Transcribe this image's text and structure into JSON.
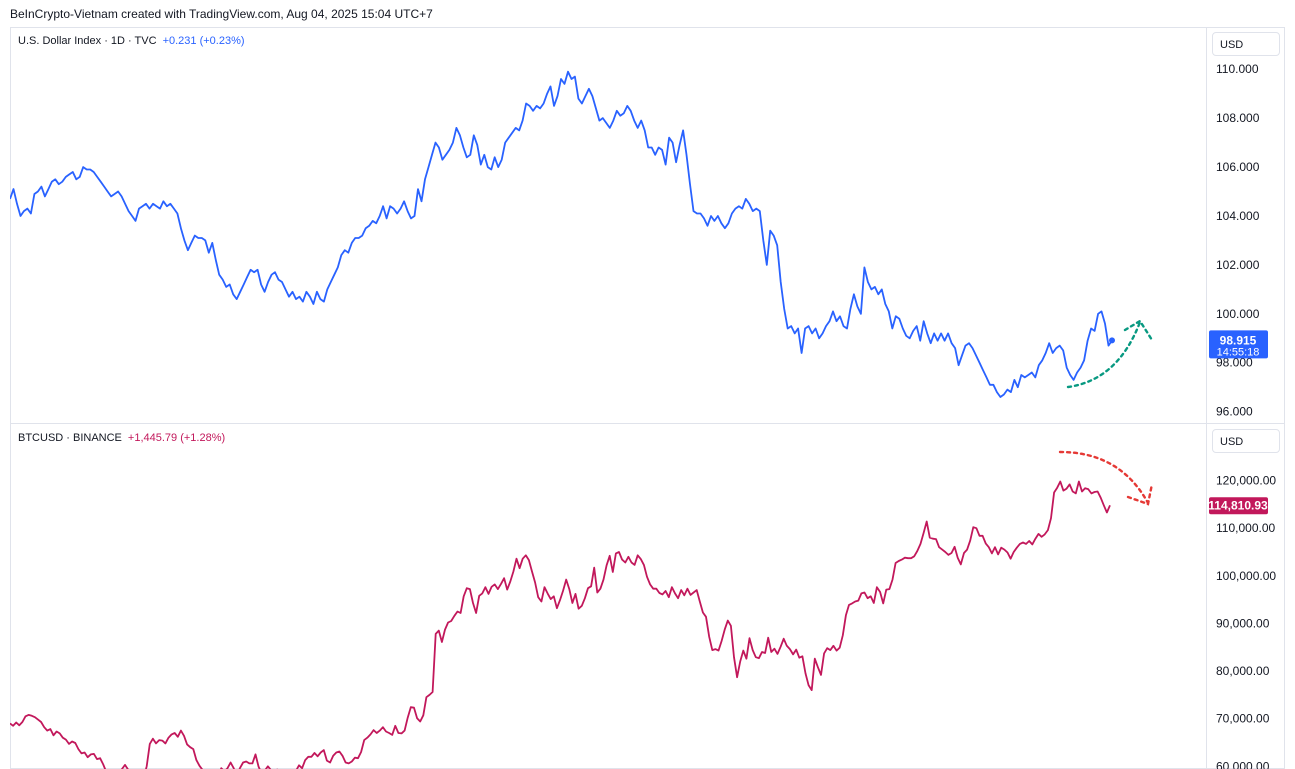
{
  "header": {
    "text": "BeInCrypto-Vietnam created with TradingView.com, Aug 04, 2025 15:04 UTC+7"
  },
  "panes": {
    "dxy": {
      "legend": {
        "symbol": "U.S. Dollar Index · 1D · TVC",
        "change": "+0.231 (+0.23%)"
      },
      "currency": "USD",
      "last_price": "98.915",
      "countdown": "14:55:18",
      "line_color": "#2962ff",
      "label_color": "#2962ff",
      "annotation_color": "#089981"
    },
    "btc": {
      "legend": {
        "symbol": "BTCUSD · BINANCE",
        "change": "+1,445.79 (+1.28%)"
      },
      "currency": "USD",
      "last_price": "114,810.93",
      "line_color": "#c2185b",
      "label_color": "#c2185b",
      "annotation_color": "#e53935"
    }
  },
  "chart_data": [
    {
      "type": "line",
      "name": "dxy",
      "ylim": [
        95.7,
        110.5
      ],
      "yticks": [
        {
          "v": 96,
          "label": "96.000"
        },
        {
          "v": 98,
          "label": "98.000"
        },
        {
          "v": 100,
          "label": "100.000"
        },
        {
          "v": 102,
          "label": "102.000"
        },
        {
          "v": 104,
          "label": "104.000"
        },
        {
          "v": 106,
          "label": "106.000"
        },
        {
          "v": 108,
          "label": "108.000"
        },
        {
          "v": 110,
          "label": "110.000"
        }
      ],
      "values": [
        104.7,
        105.1,
        104.5,
        104.0,
        104.2,
        104.3,
        104.1,
        104.9,
        105.0,
        105.2,
        104.8,
        105.1,
        105.4,
        105.5,
        105.3,
        105.4,
        105.6,
        105.7,
        105.8,
        105.5,
        105.6,
        106.0,
        105.9,
        105.9,
        105.8,
        105.6,
        105.4,
        105.2,
        105.0,
        104.8,
        104.9,
        105.0,
        104.8,
        104.5,
        104.2,
        104.0,
        103.8,
        104.3,
        104.4,
        104.5,
        104.3,
        104.5,
        104.4,
        104.3,
        104.6,
        104.4,
        104.5,
        104.3,
        104.1,
        103.5,
        103.0,
        102.6,
        102.9,
        103.2,
        103.1,
        103.1,
        103.0,
        102.5,
        102.9,
        102.2,
        101.6,
        101.4,
        101.1,
        101.2,
        100.8,
        100.6,
        100.9,
        101.2,
        101.5,
        101.8,
        101.7,
        101.8,
        101.2,
        100.9,
        101.3,
        101.6,
        101.7,
        101.4,
        101.3,
        101.0,
        100.7,
        100.9,
        100.6,
        100.7,
        100.5,
        100.9,
        100.7,
        100.4,
        100.9,
        100.6,
        100.5,
        101.0,
        101.3,
        101.6,
        101.9,
        102.4,
        102.6,
        102.5,
        102.9,
        103.1,
        103.1,
        103.2,
        103.5,
        103.6,
        103.8,
        103.7,
        104.0,
        104.4,
        103.9,
        104.4,
        104.3,
        104.1,
        104.3,
        104.6,
        104.2,
        103.9,
        104.0,
        105.1,
        104.6,
        105.5,
        106.0,
        106.5,
        107.0,
        106.8,
        106.3,
        106.5,
        106.7,
        107.0,
        107.6,
        107.3,
        106.8,
        106.4,
        106.5,
        107.3,
        106.9,
        106.1,
        106.5,
        106.0,
        105.9,
        106.4,
        106.0,
        106.3,
        107.0,
        107.2,
        107.4,
        107.6,
        107.5,
        107.9,
        108.6,
        108.5,
        108.3,
        108.5,
        108.4,
        108.6,
        109.0,
        109.3,
        108.5,
        108.9,
        109.6,
        109.4,
        109.9,
        109.6,
        109.7,
        108.8,
        108.6,
        108.9,
        109.2,
        108.9,
        108.4,
        107.9,
        108.0,
        107.8,
        107.6,
        107.9,
        108.3,
        108.1,
        108.2,
        108.5,
        108.3,
        107.9,
        107.6,
        107.9,
        107.5,
        106.8,
        106.8,
        106.5,
        106.8,
        106.7,
        106.1,
        107.2,
        107.0,
        106.2,
        106.9,
        107.5,
        106.5,
        105.3,
        104.2,
        104.1,
        104.1,
        103.9,
        103.6,
        104.0,
        103.8,
        104.0,
        103.7,
        103.5,
        103.7,
        104.1,
        104.3,
        104.4,
        104.3,
        104.7,
        104.5,
        104.2,
        104.3,
        104.2,
        103.0,
        102.0,
        103.4,
        103.2,
        102.8,
        101.3,
        100.2,
        99.4,
        99.5,
        99.2,
        99.4,
        98.4,
        99.4,
        99.5,
        99.2,
        99.4,
        99.0,
        99.2,
        99.5,
        99.7,
        100.1,
        99.7,
        99.9,
        99.5,
        99.4,
        100.2,
        100.8,
        100.3,
        100.0,
        101.9,
        101.3,
        101.0,
        101.1,
        100.8,
        101.0,
        100.4,
        100.1,
        99.4,
        99.9,
        99.8,
        99.4,
        99.1,
        99.0,
        99.3,
        99.5,
        98.9,
        99.7,
        99.2,
        98.8,
        99.2,
        98.9,
        99.2,
        98.9,
        99.2,
        98.8,
        98.6,
        97.9,
        98.3,
        98.7,
        98.8,
        98.6,
        98.3,
        98.0,
        97.7,
        97.4,
        97.1,
        97.1,
        96.8,
        96.6,
        96.7,
        96.9,
        96.8,
        97.3,
        97.0,
        97.5,
        97.4,
        97.5,
        97.6,
        97.4,
        97.9,
        98.1,
        98.4,
        98.8,
        98.4,
        98.6,
        98.7,
        98.5,
        97.8,
        97.5,
        97.3,
        97.6,
        97.8,
        98.1,
        98.9,
        99.4,
        99.3,
        100.0,
        100.1,
        99.6,
        98.7,
        98.915
      ]
    },
    {
      "type": "line",
      "name": "btc",
      "ylim": [
        58800,
        126000
      ],
      "yticks": [
        {
          "v": 60000,
          "label": "60,000.00"
        },
        {
          "v": 70000,
          "label": "70,000.00"
        },
        {
          "v": 80000,
          "label": "80,000.00"
        },
        {
          "v": 90000,
          "label": "90,000.00"
        },
        {
          "v": 100000,
          "label": "100,000.00"
        },
        {
          "v": 110000,
          "label": "110,000.00"
        },
        {
          "v": 120000,
          "label": "120,000.00"
        }
      ],
      "values": [
        69000,
        68500,
        69200,
        68600,
        69300,
        70500,
        70800,
        70600,
        70300,
        69800,
        69300,
        68200,
        67500,
        67800,
        66500,
        67300,
        66900,
        66000,
        65600,
        64700,
        65200,
        64900,
        63600,
        62700,
        62900,
        61900,
        62500,
        62600,
        61500,
        61700,
        60400,
        58800,
        57400,
        57200,
        56800,
        57500,
        59400,
        60300,
        59300,
        58300,
        57500,
        57300,
        56700,
        57500,
        60000,
        64700,
        65800,
        64800,
        65500,
        65400,
        64800,
        66000,
        66700,
        67000,
        66200,
        67500,
        66400,
        64600,
        64000,
        63600,
        61300,
        60100,
        59200,
        58600,
        57500,
        55900,
        56400,
        57900,
        59600,
        58900,
        59600,
        60800,
        59600,
        57900,
        59600,
        60800,
        61000,
        60600,
        60600,
        62500,
        59900,
        58500,
        59100,
        60000,
        59200,
        58400,
        59300,
        57100,
        56900,
        55900,
        56600,
        57900,
        59000,
        60200,
        59600,
        61300,
        62000,
        62000,
        62800,
        62100,
        62900,
        63400,
        61200,
        60800,
        62200,
        62900,
        63100,
        62200,
        60800,
        60600,
        61000,
        61800,
        61700,
        63000,
        65500,
        66000,
        66700,
        67600,
        67000,
        67500,
        68200,
        67300,
        67000,
        66600,
        68500,
        67000,
        66900,
        67500,
        70200,
        72400,
        72300,
        70100,
        69400,
        70700,
        74500,
        75000,
        75600,
        87800,
        88500,
        86100,
        88700,
        90200,
        90500,
        91600,
        92500,
        92200,
        95700,
        97400,
        97200,
        94300,
        92200,
        95800,
        96300,
        97600,
        96200,
        97700,
        98200,
        97200,
        98300,
        99500,
        97100,
        98800,
        100900,
        103600,
        101600,
        103600,
        104300,
        103300,
        100900,
        98600,
        95500,
        94600,
        97600,
        96300,
        95100,
        95700,
        93200,
        94900,
        96900,
        99200,
        97200,
        94300,
        96200,
        93100,
        93700,
        95300,
        97400,
        97800,
        101700,
        96500,
        97300,
        99200,
        102200,
        104200,
        100800,
        104700,
        105000,
        103400,
        102800,
        104000,
        102800,
        102300,
        104300,
        103500,
        102300,
        99800,
        98200,
        97300,
        97300,
        96400,
        96100,
        96800,
        95500,
        97600,
        96300,
        95300,
        97000,
        95900,
        97300,
        96000,
        96500,
        97000,
        94600,
        92300,
        91400,
        87200,
        84400,
        84600,
        84300,
        86300,
        88700,
        90600,
        89500,
        82900,
        78700,
        82000,
        84300,
        82600,
        86900,
        84400,
        82900,
        82700,
        84000,
        83800,
        87000,
        84000,
        84700,
        83600,
        85100,
        86800,
        85300,
        84600,
        83500,
        84500,
        82800,
        83100,
        79500,
        77000,
        76000,
        82600,
        80800,
        79200,
        83700,
        84800,
        84400,
        85300,
        84300,
        84900,
        87500,
        91700,
        93900,
        94200,
        94600,
        94800,
        96300,
        96500,
        95300,
        95700,
        94300,
        97600,
        96600,
        94200,
        97100,
        97200,
        99200,
        102700,
        103100,
        103400,
        103800,
        103700,
        103700,
        104100,
        105200,
        106700,
        109000,
        111400,
        108000,
        107800,
        107700,
        106000,
        105500,
        105000,
        104400,
        104800,
        106100,
        103800,
        102400,
        104800,
        105500,
        107400,
        110200,
        110000,
        108400,
        108400,
        106800,
        106000,
        104700,
        106000,
        104500,
        105900,
        105500,
        104900,
        103600,
        105000,
        105900,
        106700,
        107000,
        106700,
        107300,
        106600,
        107800,
        108800,
        108200,
        108700,
        109600,
        112100,
        117500,
        118500,
        119800,
        117900,
        118300,
        119200,
        117700,
        117300,
        119800,
        117700,
        118400,
        118200,
        117300,
        117600,
        117700,
        116400,
        114800,
        113300,
        114810
      ]
    }
  ]
}
